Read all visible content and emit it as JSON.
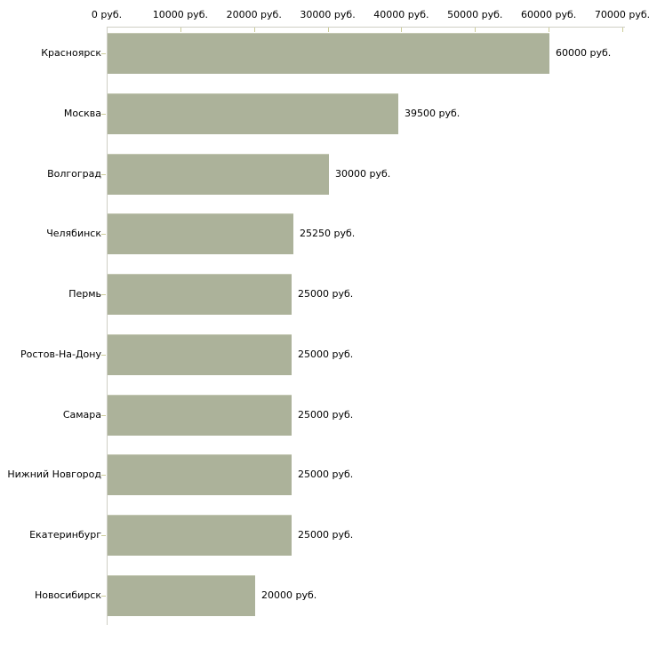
{
  "chart_data": {
    "type": "bar",
    "orientation": "horizontal",
    "title": "",
    "xlabel": "",
    "ylabel": "",
    "unit": "руб.",
    "grid": false,
    "legend": false,
    "xlim": [
      0,
      70000
    ],
    "categories": [
      "Красноярск",
      "Москва",
      "Волгоград",
      "Челябинск",
      "Пермь",
      "Ростов-На-Дону",
      "Самара",
      "Нижний Новгород",
      "Екатеринбург",
      "Новосибирск"
    ],
    "values": [
      60000,
      39500,
      30000,
      25250,
      25000,
      25000,
      25000,
      25000,
      25000,
      20000
    ],
    "value_labels": [
      "60000 руб.",
      "39500 руб.",
      "30000 руб.",
      "25250 руб.",
      "25000 руб.",
      "25000 руб.",
      "25000 руб.",
      "25000 руб.",
      "25000 руб.",
      "20000 руб."
    ],
    "x_ticks": [
      0,
      10000,
      20000,
      30000,
      40000,
      50000,
      60000,
      70000
    ],
    "x_tick_labels": [
      "0 руб.",
      "10000 руб.",
      "20000 руб.",
      "30000 руб.",
      "40000 руб.",
      "50000 руб.",
      "60000 руб.",
      "70000 руб."
    ],
    "colors": {
      "bar": "#acb29a",
      "bar_top_edge": "#c4c8b3",
      "axis_line": "#cfcfc5",
      "tick": "#cccc99",
      "text": "#000000",
      "background": "#ffffff"
    }
  }
}
